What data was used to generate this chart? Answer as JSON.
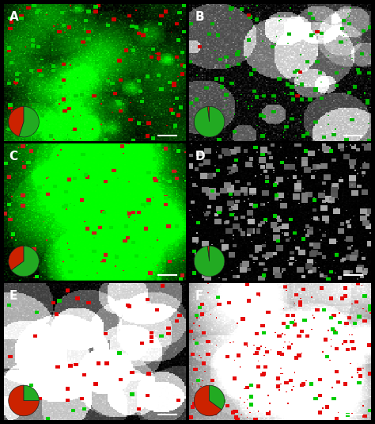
{
  "panel_labels": [
    "A",
    "B",
    "C",
    "D",
    "E",
    "F"
  ],
  "background_color": "#000000",
  "label_color": "#ffffff",
  "label_fontsize": 11,
  "grid_rows": 3,
  "grid_cols": 2,
  "separator_color": "#ffffff",
  "separator_linewidth": 1.5,
  "pie_charts": [
    {
      "red": 0.45,
      "green": 0.55,
      "show": true
    },
    {
      "red": 0.02,
      "green": 0.98,
      "show": true
    },
    {
      "red": 0.35,
      "green": 0.65,
      "show": true
    },
    {
      "red": 0.02,
      "green": 0.98,
      "show": true
    },
    {
      "red": 0.75,
      "green": 0.25,
      "show": true
    },
    {
      "red": 0.65,
      "green": 0.35,
      "show": true
    }
  ],
  "panel_colors": [
    "panel_A",
    "panel_B",
    "panel_C",
    "panel_D",
    "panel_E",
    "panel_F"
  ],
  "scale_bar_color": "#ffffff",
  "pie_red": "#cc2200",
  "pie_green": "#22aa22"
}
